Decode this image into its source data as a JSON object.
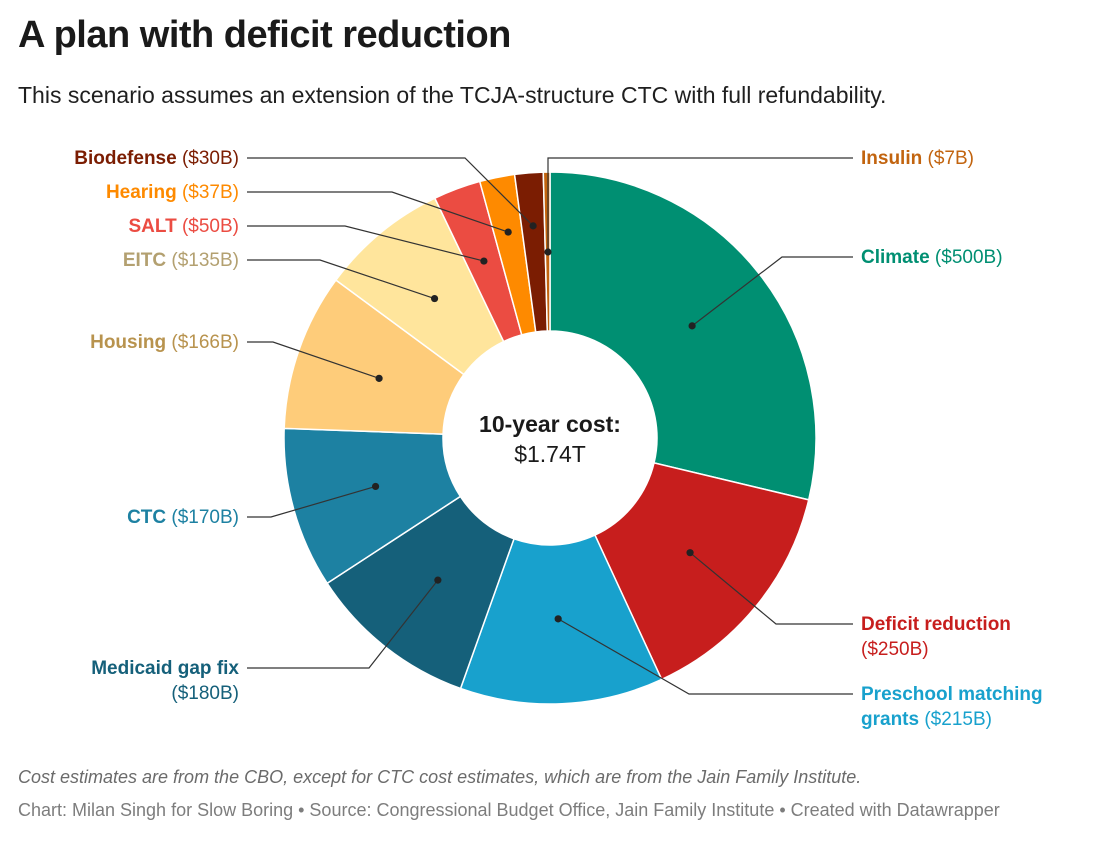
{
  "header": {
    "title": "A plan with deficit reduction",
    "subtitle": "This scenario assumes an extension of the TCJA-structure CTC with full refundability."
  },
  "center": {
    "line1": "10-year cost:",
    "line2": "$1.74T"
  },
  "footer": {
    "note": "Cost estimates are from the CBO, except for CTC cost estimates, which are from the Jain Family Institute.",
    "credit": "Chart: Milan Singh for Slow Boring • Source: Congressional Budget Office, Jain Family Institute • Created with Datawrapper"
  },
  "chart_data": {
    "type": "pie",
    "variant": "donut",
    "slices": [
      {
        "name": "Climate",
        "value": 500,
        "value_label": "($500B)",
        "color": "#008f72",
        "label_color": "#008f72"
      },
      {
        "name": "Deficit reduction",
        "value": 250,
        "value_label": "($250B)",
        "color": "#c71e1d",
        "label_color": "#c71e1d"
      },
      {
        "name": "Preschool matching grants",
        "value": 215,
        "value_label": "($215B)",
        "color": "#18a1cd",
        "label_color": "#18a1cd"
      },
      {
        "name": "Medicaid gap fix",
        "value": 180,
        "value_label": "($180B)",
        "color": "#15607a",
        "label_color": "#15607a"
      },
      {
        "name": "CTC",
        "value": 170,
        "value_label": "($170B)",
        "color": "#1d81a2",
        "label_color": "#1d81a2"
      },
      {
        "name": "Housing",
        "value": 166,
        "value_label": "($166B)",
        "color": "#fecc7a",
        "label_color": "#b8934e"
      },
      {
        "name": "EITC",
        "value": 135,
        "value_label": "($135B)",
        "color": "#ffe59c",
        "label_color": "#b3a070"
      },
      {
        "name": "SALT",
        "value": 50,
        "value_label": "($50B)",
        "color": "#eb4c42",
        "label_color": "#eb4c42"
      },
      {
        "name": "Hearing",
        "value": 37,
        "value_label": "($37B)",
        "color": "#fe8a00",
        "label_color": "#fe8a00"
      },
      {
        "name": "Biodefense",
        "value": 30,
        "value_label": "($30B)",
        "color": "#7b1d02",
        "label_color": "#7b1d02"
      },
      {
        "name": "Insulin",
        "value": 7,
        "value_label": "($7B)",
        "color": "#c2640f",
        "label_color": "#c2640f"
      }
    ]
  }
}
